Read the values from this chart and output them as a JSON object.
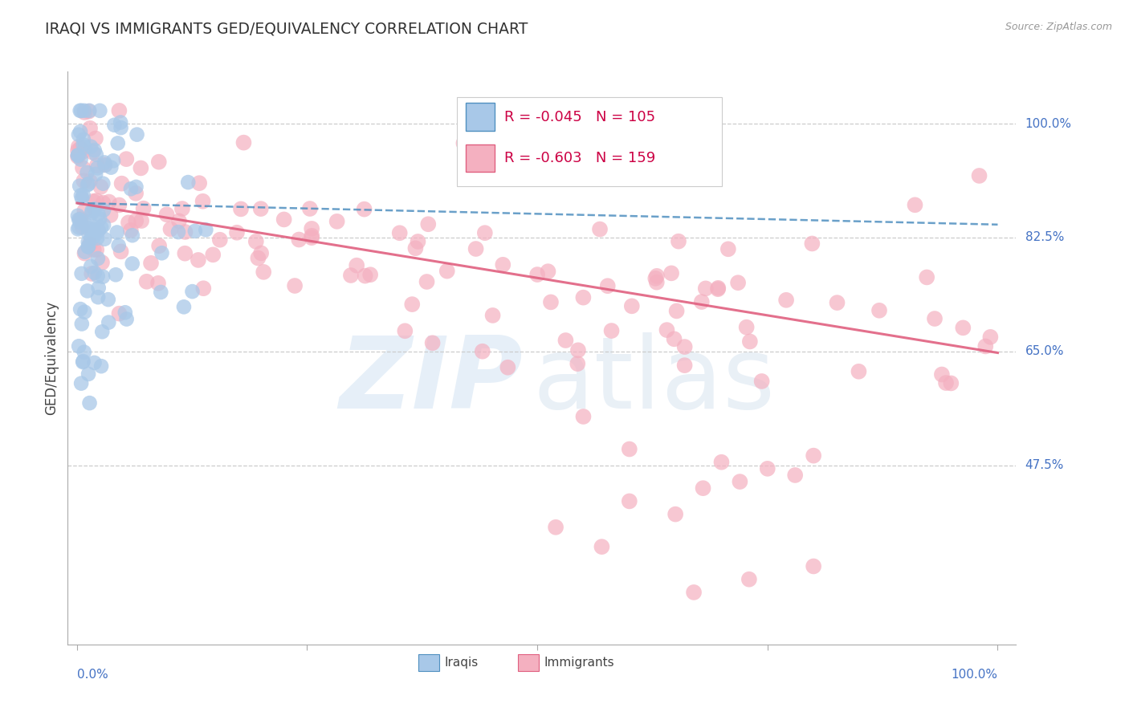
{
  "title": "IRAQI VS IMMIGRANTS GED/EQUIVALENCY CORRELATION CHART",
  "source": "Source: ZipAtlas.com",
  "ylabel": "GED/Equivalency",
  "ytick_labels": [
    "100.0%",
    "82.5%",
    "65.0%",
    "47.5%"
  ],
  "ytick_values": [
    1.0,
    0.825,
    0.65,
    0.475
  ],
  "legend_blue_r": "R = -0.045",
  "legend_blue_n": "N = 105",
  "legend_pink_r": "R = -0.603",
  "legend_pink_n": "N = 159",
  "blue_color": "#a8c8e8",
  "pink_color": "#f4b0c0",
  "blue_line_color": "#5090c0",
  "pink_line_color": "#e06080",
  "blue_line_start_y": 0.878,
  "blue_line_end_y": 0.845,
  "pink_line_start_y": 0.878,
  "pink_line_end_y": 0.648,
  "xmin": 0.0,
  "xmax": 1.0,
  "ymin": 0.2,
  "ymax": 1.08,
  "grid_color": "#cccccc",
  "axis_color": "#aaaaaa",
  "label_color": "#4472c4",
  "title_color": "#333333",
  "source_color": "#999999"
}
